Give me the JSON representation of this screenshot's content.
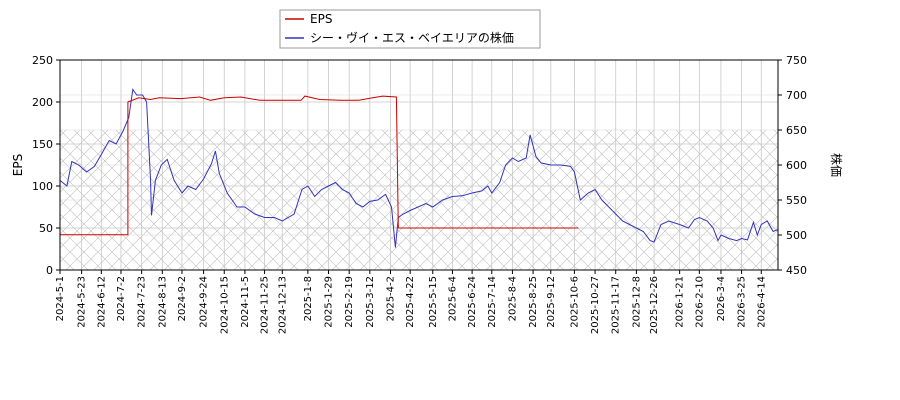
{
  "chart_data": {
    "type": "line",
    "ylabel_left": "EPS",
    "ylabel_right": "株価",
    "ylim_left": [
      0,
      250
    ],
    "ylim_right": [
      450,
      750
    ],
    "yticks_left": [
      0,
      50,
      100,
      150,
      200,
      250
    ],
    "yticks_right": [
      450,
      500,
      550,
      600,
      650,
      700,
      750
    ],
    "x_start": "2024-05-01",
    "x_end": "2026-05-01",
    "x_ticks": [
      "2024-5-1",
      "2024-5-23",
      "2024-6-12",
      "2024-7-2",
      "2024-7-23",
      "2024-8-13",
      "2024-9-2",
      "2024-9-24",
      "2024-10-15",
      "2024-11-5",
      "2024-11-25",
      "2024-12-13",
      "2025-1-8",
      "2025-1-29",
      "2025-2-19",
      "2025-3-12",
      "2025-4-2",
      "2025-4-22",
      "2025-5-15",
      "2025-6-4",
      "2025-6-24",
      "2025-7-14",
      "2025-8-4",
      "2025-8-25",
      "2025-9-12",
      "2025-10-6",
      "2025-10-27",
      "2025-11-17",
      "2025-12-8",
      "2025-12-26",
      "2026-1-21",
      "2026-2-10",
      "2026-3-4",
      "2026-3-25",
      "2026-4-14"
    ],
    "grid": true,
    "legend_position": "top-center",
    "series": [
      {
        "name": "EPS",
        "axis": "left",
        "color": "#cc0000",
        "points": [
          [
            "2024-05-01",
            42
          ],
          [
            "2024-07-09",
            42
          ],
          [
            "2024-07-09",
            200
          ],
          [
            "2024-07-20",
            205
          ],
          [
            "2024-08-01",
            203
          ],
          [
            "2024-08-10",
            205
          ],
          [
            "2024-09-01",
            204
          ],
          [
            "2024-09-20",
            206
          ],
          [
            "2024-10-01",
            202
          ],
          [
            "2024-10-15",
            205
          ],
          [
            "2024-11-01",
            206
          ],
          [
            "2024-11-20",
            202
          ],
          [
            "2024-12-15",
            202
          ],
          [
            "2025-01-01",
            202
          ],
          [
            "2025-01-05",
            207
          ],
          [
            "2025-01-20",
            203
          ],
          [
            "2025-02-10",
            202
          ],
          [
            "2025-03-01",
            202
          ],
          [
            "2025-03-15",
            205
          ],
          [
            "2025-03-25",
            207
          ],
          [
            "2025-04-08",
            206
          ],
          [
            "2025-04-10",
            50
          ],
          [
            "2025-10-10",
            50
          ]
        ]
      },
      {
        "name": "シー・ヴイ・エス・ベイエリアの株価",
        "axis": "right",
        "color": "#3333bb",
        "points": [
          [
            "2024-05-01",
            578
          ],
          [
            "2024-05-08",
            570
          ],
          [
            "2024-05-13",
            605
          ],
          [
            "2024-05-20",
            600
          ],
          [
            "2024-05-28",
            590
          ],
          [
            "2024-06-05",
            598
          ],
          [
            "2024-06-12",
            615
          ],
          [
            "2024-06-20",
            635
          ],
          [
            "2024-06-27",
            630
          ],
          [
            "2024-07-04",
            648
          ],
          [
            "2024-07-10",
            668
          ],
          [
            "2024-07-14",
            708
          ],
          [
            "2024-07-18",
            700
          ],
          [
            "2024-07-24",
            700
          ],
          [
            "2024-07-28",
            690
          ],
          [
            "2024-08-01",
            580
          ],
          [
            "2024-08-02",
            528
          ],
          [
            "2024-08-06",
            578
          ],
          [
            "2024-08-12",
            600
          ],
          [
            "2024-08-18",
            608
          ],
          [
            "2024-08-25",
            578
          ],
          [
            "2024-09-02",
            560
          ],
          [
            "2024-09-08",
            570
          ],
          [
            "2024-09-16",
            565
          ],
          [
            "2024-09-24",
            580
          ],
          [
            "2024-10-02",
            602
          ],
          [
            "2024-10-06",
            620
          ],
          [
            "2024-10-10",
            588
          ],
          [
            "2024-10-18",
            560
          ],
          [
            "2024-10-28",
            540
          ],
          [
            "2024-11-05",
            540
          ],
          [
            "2024-11-15",
            530
          ],
          [
            "2024-11-25",
            525
          ],
          [
            "2024-12-05",
            525
          ],
          [
            "2024-12-13",
            520
          ],
          [
            "2024-12-25",
            530
          ],
          [
            "2025-01-02",
            565
          ],
          [
            "2025-01-08",
            570
          ],
          [
            "2025-01-15",
            555
          ],
          [
            "2025-01-22",
            565
          ],
          [
            "2025-01-29",
            570
          ],
          [
            "2025-02-05",
            575
          ],
          [
            "2025-02-12",
            565
          ],
          [
            "2025-02-19",
            560
          ],
          [
            "2025-02-26",
            545
          ],
          [
            "2025-03-05",
            540
          ],
          [
            "2025-03-12",
            548
          ],
          [
            "2025-03-20",
            550
          ],
          [
            "2025-03-28",
            558
          ],
          [
            "2025-04-03",
            540
          ],
          [
            "2025-04-07",
            482
          ],
          [
            "2025-04-10",
            525
          ],
          [
            "2025-04-15",
            530
          ],
          [
            "2025-04-22",
            535
          ],
          [
            "2025-04-30",
            540
          ],
          [
            "2025-05-08",
            545
          ],
          [
            "2025-05-15",
            540
          ],
          [
            "2025-05-25",
            550
          ],
          [
            "2025-06-04",
            555
          ],
          [
            "2025-06-14",
            556
          ],
          [
            "2025-06-24",
            560
          ],
          [
            "2025-07-04",
            563
          ],
          [
            "2025-07-10",
            570
          ],
          [
            "2025-07-14",
            560
          ],
          [
            "2025-07-22",
            575
          ],
          [
            "2025-07-28",
            600
          ],
          [
            "2025-08-04",
            610
          ],
          [
            "2025-08-10",
            605
          ],
          [
            "2025-08-18",
            610
          ],
          [
            "2025-08-22",
            643
          ],
          [
            "2025-08-28",
            612
          ],
          [
            "2025-09-02",
            603
          ],
          [
            "2025-09-12",
            600
          ],
          [
            "2025-09-22",
            600
          ],
          [
            "2025-10-02",
            598
          ],
          [
            "2025-10-06",
            590
          ],
          [
            "2025-10-12",
            550
          ],
          [
            "2025-10-20",
            560
          ],
          [
            "2025-10-27",
            565
          ],
          [
            "2025-11-03",
            550
          ],
          [
            "2025-11-10",
            540
          ],
          [
            "2025-11-17",
            530
          ],
          [
            "2025-11-24",
            520
          ],
          [
            "2025-12-01",
            515
          ],
          [
            "2025-12-08",
            510
          ],
          [
            "2025-12-15",
            505
          ],
          [
            "2025-12-22",
            492
          ],
          [
            "2025-12-26",
            490
          ],
          [
            "2026-01-02",
            515
          ],
          [
            "2026-01-10",
            520
          ],
          [
            "2026-01-21",
            515
          ],
          [
            "2026-01-30",
            510
          ],
          [
            "2026-02-05",
            522
          ],
          [
            "2026-02-10",
            525
          ],
          [
            "2026-02-18",
            520
          ],
          [
            "2026-02-24",
            510
          ],
          [
            "2026-03-01",
            492
          ],
          [
            "2026-03-04",
            500
          ],
          [
            "2026-03-12",
            495
          ],
          [
            "2026-03-20",
            492
          ],
          [
            "2026-03-25",
            495
          ],
          [
            "2026-03-31",
            493
          ],
          [
            "2026-04-06",
            518
          ],
          [
            "2026-04-10",
            500
          ],
          [
            "2026-04-14",
            515
          ],
          [
            "2026-04-20",
            520
          ],
          [
            "2026-04-26",
            505
          ],
          [
            "2026-05-01",
            508
          ]
        ]
      }
    ]
  }
}
